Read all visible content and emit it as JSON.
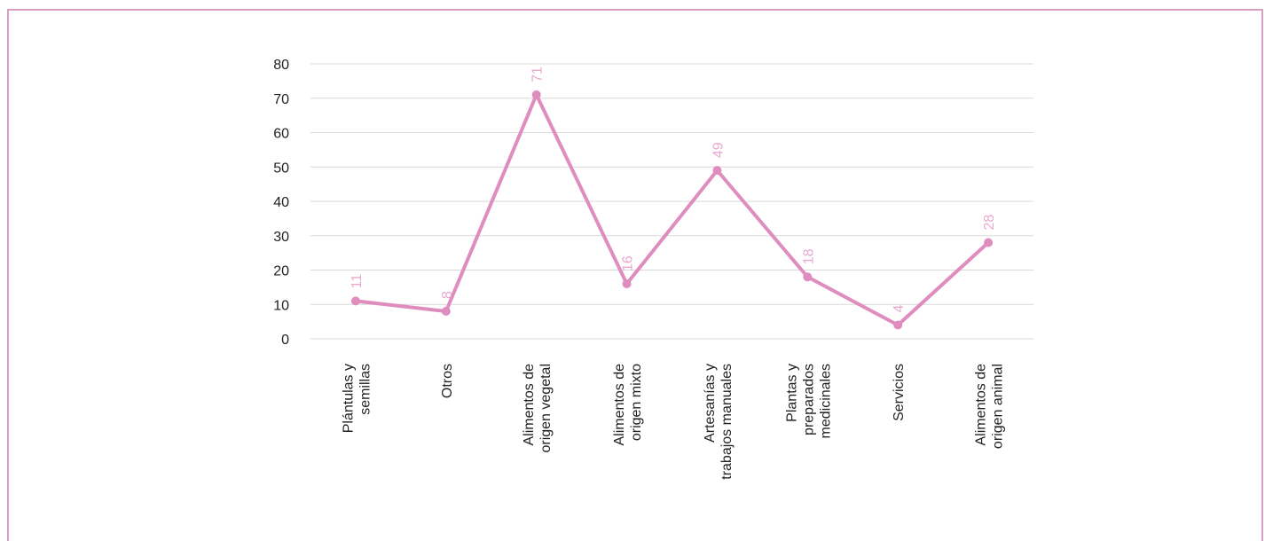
{
  "chart_data": {
    "type": "line",
    "categories": [
      [
        "Plántulas y",
        "semillas"
      ],
      [
        "Otros"
      ],
      [
        "Alimentos de",
        "origen vegetal"
      ],
      [
        "Alimentos de",
        "origen mixto"
      ],
      [
        "Artesanías y",
        "trabajos manuales"
      ],
      [
        "Plantas y",
        "preparados",
        "medicinales"
      ],
      [
        "Servicios"
      ],
      [
        "Alimentos de",
        "origen animal"
      ]
    ],
    "series": [
      {
        "values": [
          11,
          8,
          71,
          16,
          49,
          18,
          4,
          28
        ]
      }
    ],
    "ylim": [
      0,
      80
    ],
    "yticks": [
      "0",
      "10",
      "20",
      "30",
      "40",
      "50",
      "60",
      "70",
      "80"
    ],
    "grid": true,
    "data_labels": true,
    "title": "",
    "xlabel": "",
    "ylabel": ""
  },
  "colors": {
    "line": "#df8dbe",
    "label": "#e9a9cf",
    "grid": "#d9d9d9",
    "frame": "#d9a0c2"
  }
}
